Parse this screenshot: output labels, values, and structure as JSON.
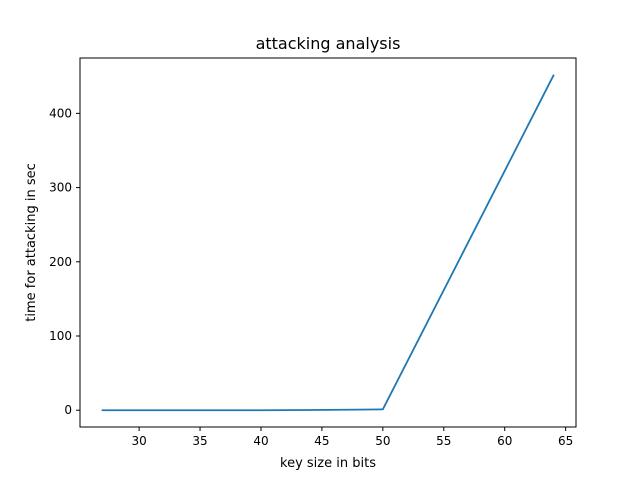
{
  "chart_data": {
    "type": "line",
    "title": "attacking analysis",
    "xlabel": "key size in bits",
    "ylabel": "time for attacking in sec",
    "xlim": [
      25.15,
      65.85
    ],
    "ylim": [
      -22.6,
      474.6
    ],
    "xticks": [
      30,
      35,
      40,
      45,
      50,
      55,
      60,
      65
    ],
    "yticks": [
      0,
      100,
      200,
      300,
      400
    ],
    "grid": false,
    "legend": "none",
    "series": [
      {
        "color": "#1f77b4",
        "x": [
          27,
          30,
          35,
          40,
          44,
          48,
          50,
          64
        ],
        "y": [
          0,
          0,
          0,
          0,
          0.3,
          0.8,
          1.2,
          451
        ]
      }
    ]
  }
}
